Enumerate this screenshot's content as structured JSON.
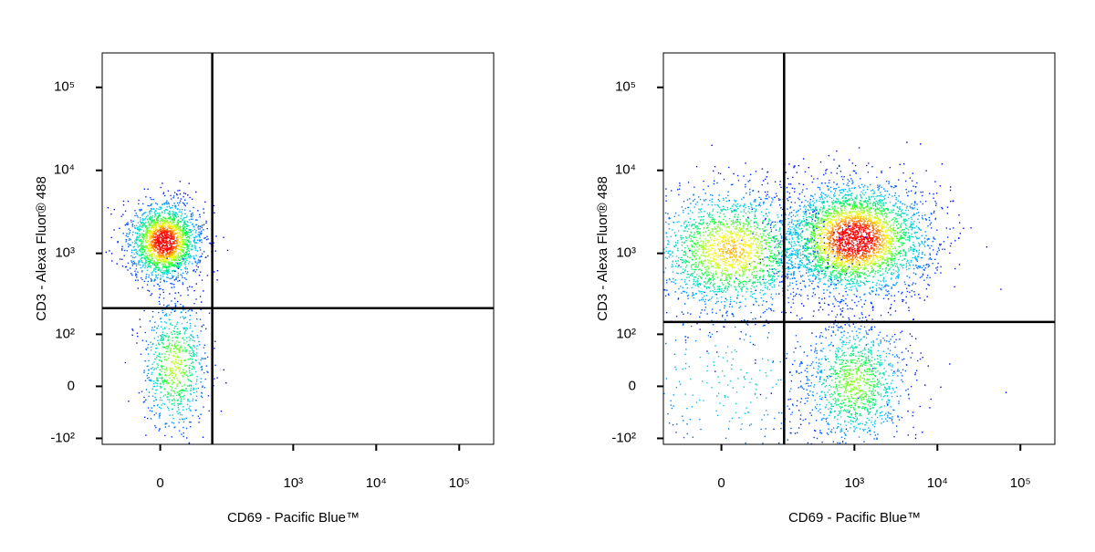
{
  "chart_data": [
    {
      "type": "density",
      "x_label": "CD69 - Pacific Blue™",
      "y_label": "CD3 - Alexa Fluor® 488",
      "xscale": "biexponential",
      "yscale": "biexponential",
      "xlim": [
        -120,
        260000
      ],
      "ylim": [
        -120,
        260000
      ],
      "xticks": [
        0,
        {
          "value": 1000,
          "label": "10³"
        },
        {
          "value": 10000,
          "label": "10⁴"
        },
        {
          "value": 100000,
          "label": "10⁵"
        }
      ],
      "yticks": [
        {
          "value": -100,
          "label": "-10²"
        },
        0,
        {
          "value": 100,
          "label": "10²"
        },
        {
          "value": 1000,
          "label": "10³"
        },
        {
          "value": 10000,
          "label": "10⁴"
        },
        {
          "value": 100000,
          "label": "10⁵"
        }
      ],
      "gate_x": 100,
      "gate_y": 216,
      "colormap": [
        "#0000ff",
        "#00c8ff",
        "#00ff40",
        "#ffff00",
        "#ff0000"
      ],
      "populations": [
        {
          "x": 5,
          "y": 1400,
          "spread_x": 0.22,
          "spread_y": 0.24,
          "count": 2000
        },
        {
          "x": 20,
          "y": 30,
          "spread_x": 0.2,
          "spread_y": 0.42,
          "count": 800
        }
      ]
    },
    {
      "type": "density",
      "x_label": "CD69 - Pacific Blue™",
      "y_label": "CD3 - Alexa Fluor® 488",
      "xscale": "biexponential",
      "yscale": "biexponential",
      "xlim": [
        -120,
        260000
      ],
      "ylim": [
        -120,
        260000
      ],
      "xticks": [
        0,
        {
          "value": 1000,
          "label": "10³"
        },
        {
          "value": 10000,
          "label": "10⁴"
        },
        {
          "value": 100000,
          "label": "10⁵"
        }
      ],
      "yticks": [
        {
          "value": -100,
          "label": "-10²"
        },
        0,
        {
          "value": 100,
          "label": "10²"
        },
        {
          "value": 1000,
          "label": "10³"
        },
        {
          "value": 10000,
          "label": "10⁴"
        },
        {
          "value": 100000,
          "label": "10⁵"
        }
      ],
      "gate_x": 138,
      "gate_y": 145,
      "colormap": [
        "#0000ff",
        "#00c8ff",
        "#00ff40",
        "#ffff00",
        "#ff0000"
      ],
      "populations": [
        {
          "x": 1000,
          "y": 1500,
          "spread_x": 0.45,
          "spread_y": 0.34,
          "count": 3500
        },
        {
          "x": 14,
          "y": 1100,
          "spread_x": 0.5,
          "spread_y": 0.38,
          "count": 2000
        },
        {
          "x": 1000,
          "y": 5,
          "spread_x": 0.33,
          "spread_y": 0.4,
          "count": 1200
        },
        {
          "x": 10,
          "y": 10,
          "spread_x": 0.7,
          "spread_y": 0.55,
          "count": 300
        }
      ]
    }
  ]
}
